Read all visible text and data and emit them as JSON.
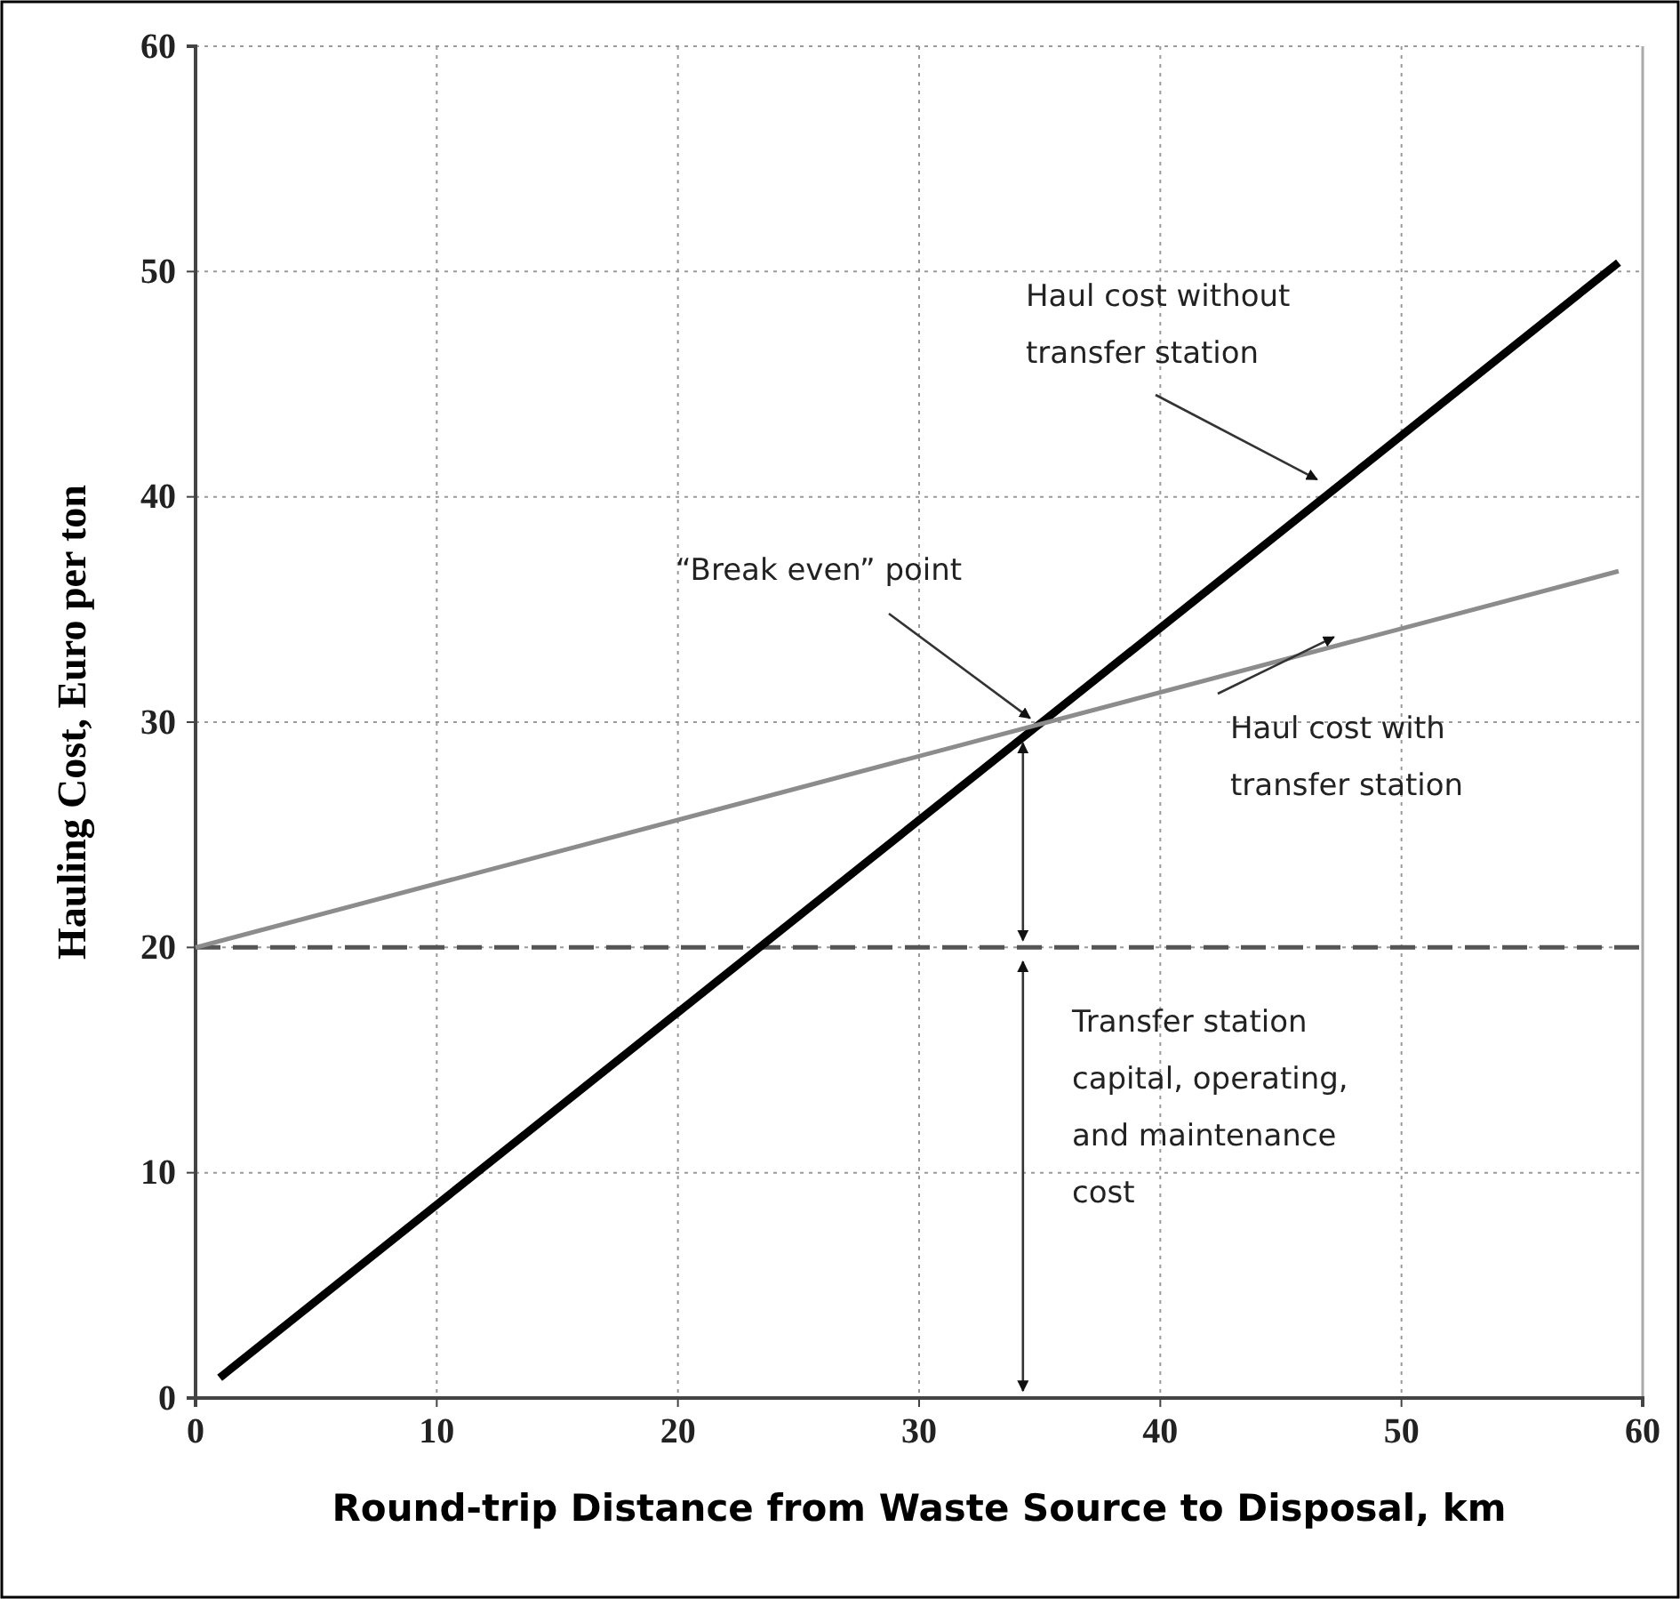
{
  "chart_data": {
    "type": "line",
    "xlabel": "Round-trip Distance from Waste Source to Disposal, km",
    "ylabel": "Hauling Cost, Euro per ton",
    "xlim": [
      0,
      60
    ],
    "xticks": [
      0,
      10,
      20,
      30,
      40,
      50,
      60
    ],
    "ylim": [
      0,
      60
    ],
    "yticks": [
      0,
      10,
      20,
      30,
      40,
      50,
      60
    ],
    "grid": true,
    "line_style": "solid",
    "marker": "none",
    "series": [
      {
        "color": "#000000",
        "x": [
          1,
          59
        ],
        "values": [
          0.9,
          50.4
        ]
      },
      {
        "color": "#8c8c8c",
        "x": [
          0,
          59
        ],
        "values": [
          20,
          36.7
        ]
      }
    ],
    "ref_lines": [
      {
        "axis": "y",
        "value": 20,
        "color": "#555555",
        "line_style": "dashed"
      }
    ],
    "annotations": [
      {
        "text": "Haul cost without transfer station",
        "x": 46.5,
        "y": 40.3
      },
      {
        "text": "“Break even” point",
        "x": 34.6,
        "y": 29.7
      },
      {
        "text": "Haul cost with transfer station",
        "x": 47.2,
        "y": 33.3
      },
      "Transfer station capital, operating, and maintenance cost"
    ]
  }
}
